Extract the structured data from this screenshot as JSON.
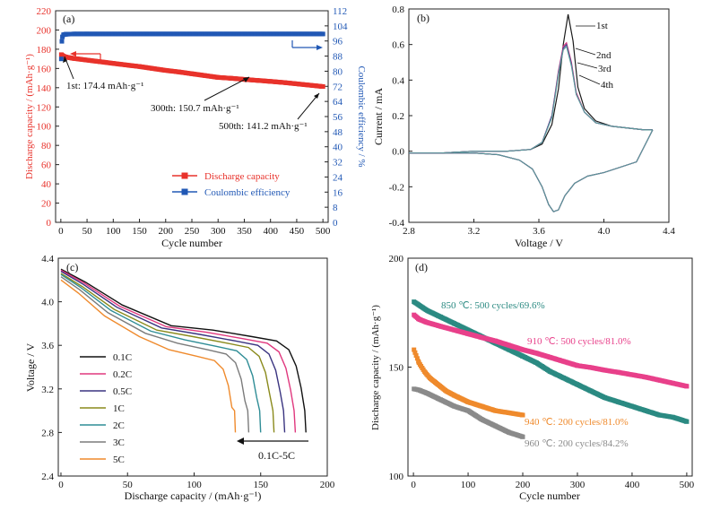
{
  "chart_data": [
    {
      "panel": "(a)",
      "type": "scatter",
      "xlabel": "Cycle number",
      "ylabel": "Discharge capacity / (mAh·g⁻¹)",
      "ylabel_right": "Coulombic efficiency / %",
      "xlim": [
        -10,
        510
      ],
      "ylim": [
        0,
        220
      ],
      "ylim_right": [
        0,
        112
      ],
      "xticks": [
        0,
        50,
        100,
        150,
        200,
        250,
        300,
        350,
        400,
        450,
        500
      ],
      "yticks": [
        0,
        20,
        40,
        60,
        80,
        100,
        120,
        140,
        160,
        180,
        200,
        220
      ],
      "yticks_right": [
        0,
        8,
        16,
        24,
        32,
        40,
        48,
        56,
        64,
        72,
        80,
        88,
        96,
        104,
        112
      ],
      "legend_position": "lower-center",
      "series": [
        {
          "name": "Discharge capacity",
          "axis": "left",
          "color": "#e8322b",
          "x": [
            1,
            5,
            10,
            25,
            50,
            75,
            100,
            125,
            150,
            175,
            200,
            225,
            250,
            275,
            300,
            325,
            350,
            375,
            400,
            425,
            450,
            475,
            500
          ],
          "y": [
            174.4,
            172.8,
            171.8,
            170.4,
            168.7,
            167.0,
            165.3,
            163.6,
            162.0,
            160.0,
            158.0,
            156.4,
            154.5,
            152.6,
            150.7,
            149.8,
            148.6,
            147.6,
            146.5,
            145.4,
            144.0,
            142.6,
            141.2
          ]
        },
        {
          "name": "Coulombic efficiency",
          "axis": "right",
          "color": "#2158b5",
          "x": [
            1,
            2,
            3,
            5,
            10,
            25,
            50,
            100,
            150,
            200,
            250,
            300,
            350,
            400,
            450,
            500
          ],
          "y": [
            86.5,
            95.8,
            98.2,
            99.3,
            99.6,
            99.7,
            99.7,
            99.7,
            99.7,
            99.7,
            99.7,
            99.7,
            99.7,
            99.7,
            99.7,
            99.7
          ]
        }
      ],
      "annotations": [
        "1st: 174.4 mAh·g⁻¹",
        "300th: 150.7 mAh·g⁻¹",
        "500th: 141.2 mAh·g⁻¹"
      ]
    },
    {
      "panel": "(b)",
      "type": "line",
      "xlabel": "Voltage / V",
      "ylabel": "Current / mA",
      "xlim": [
        2.8,
        4.4
      ],
      "ylim": [
        -0.4,
        0.8
      ],
      "xticks": [
        2.8,
        3.2,
        3.6,
        4.0,
        4.4
      ],
      "yticks": [
        -0.4,
        -0.2,
        0.0,
        0.2,
        0.4,
        0.6,
        0.8
      ],
      "series": [
        {
          "name": "1st",
          "color": "#1a1a1a",
          "x": [
            2.8,
            3.0,
            3.2,
            3.4,
            3.55,
            3.62,
            3.68,
            3.72,
            3.75,
            3.78,
            3.81,
            3.84,
            3.88,
            3.95,
            4.05,
            4.15,
            4.25,
            4.3
          ],
          "y": [
            -0.01,
            -0.01,
            0.0,
            0.0,
            0.01,
            0.04,
            0.15,
            0.35,
            0.6,
            0.77,
            0.62,
            0.36,
            0.24,
            0.17,
            0.14,
            0.13,
            0.12,
            0.12
          ]
        },
        {
          "name": "2nd",
          "color": "#d6357c",
          "x": [
            2.8,
            3.0,
            3.2,
            3.4,
            3.55,
            3.62,
            3.68,
            3.72,
            3.75,
            3.77,
            3.8,
            3.83,
            3.88,
            3.95,
            4.05,
            4.15,
            4.25,
            4.3
          ],
          "y": [
            -0.01,
            -0.01,
            0.0,
            0.0,
            0.01,
            0.05,
            0.2,
            0.45,
            0.59,
            0.61,
            0.5,
            0.33,
            0.22,
            0.16,
            0.14,
            0.13,
            0.12,
            0.12
          ]
        },
        {
          "name": "3rd",
          "color": "#4d3c92",
          "x": [
            2.8,
            3.0,
            3.2,
            3.4,
            3.55,
            3.62,
            3.68,
            3.72,
            3.75,
            3.77,
            3.8,
            3.83,
            3.88,
            3.95,
            4.05,
            4.15,
            4.25,
            4.3
          ],
          "y": [
            -0.01,
            -0.01,
            0.0,
            0.0,
            0.01,
            0.05,
            0.2,
            0.44,
            0.58,
            0.6,
            0.49,
            0.32,
            0.22,
            0.16,
            0.14,
            0.13,
            0.12,
            0.12
          ]
        },
        {
          "name": "4th",
          "color": "#5a9a9a",
          "x": [
            2.8,
            3.0,
            3.2,
            3.4,
            3.55,
            3.62,
            3.68,
            3.72,
            3.75,
            3.77,
            3.8,
            3.83,
            3.88,
            3.95,
            4.05,
            4.15,
            4.25,
            4.3
          ],
          "y": [
            -0.01,
            -0.01,
            0.0,
            0.0,
            0.01,
            0.05,
            0.19,
            0.43,
            0.57,
            0.59,
            0.48,
            0.32,
            0.22,
            0.16,
            0.14,
            0.13,
            0.12,
            0.12
          ]
        }
      ],
      "reduction_branch": {
        "x": [
          4.3,
          4.2,
          4.0,
          3.9,
          3.82,
          3.76,
          3.72,
          3.69,
          3.66,
          3.62,
          3.56,
          3.48,
          3.35,
          3.2,
          3.0,
          2.8
        ],
        "y": [
          0.12,
          -0.06,
          -0.12,
          -0.14,
          -0.18,
          -0.25,
          -0.33,
          -0.34,
          -0.3,
          -0.2,
          -0.1,
          -0.05,
          -0.02,
          -0.01,
          -0.01,
          -0.01
        ]
      },
      "annotations": [
        "1st",
        "2nd",
        "3rd",
        "4th"
      ]
    },
    {
      "panel": "(c)",
      "type": "line",
      "xlabel": "Discharge capacity / (mAh·g⁻¹)",
      "ylabel": "Voltage / V",
      "xlim": [
        -2,
        200
      ],
      "ylim": [
        2.4,
        4.4
      ],
      "xticks": [
        0,
        50,
        100,
        150,
        200
      ],
      "yticks": [
        2.4,
        2.8,
        3.2,
        3.6,
        4.0,
        4.4
      ],
      "legend_position": "left",
      "series": [
        {
          "name": "0.1C",
          "color": "#111111",
          "cap": 184,
          "v0": 4.3,
          "plateau": 3.66
        },
        {
          "name": "0.2C",
          "color": "#e0387e",
          "cap": 176,
          "v0": 4.29,
          "plateau": 3.64
        },
        {
          "name": "0.5C",
          "color": "#3a3480",
          "cap": 168,
          "v0": 4.28,
          "plateau": 3.62
        },
        {
          "name": "1C",
          "color": "#8a8a1c",
          "cap": 160,
          "v0": 4.26,
          "plateau": 3.6
        },
        {
          "name": "2C",
          "color": "#2f8d96",
          "cap": 150,
          "v0": 4.25,
          "plateau": 3.57
        },
        {
          "name": "3C",
          "color": "#7b7b7b",
          "cap": 141,
          "v0": 4.23,
          "plateau": 3.54
        },
        {
          "name": "5C",
          "color": "#ef8a2c",
          "cap": 131,
          "v0": 4.2,
          "plateau": 3.48
        }
      ],
      "annotations": [
        "0.1C-5C"
      ]
    },
    {
      "panel": "(d)",
      "type": "scatter",
      "xlabel": "Cycle number",
      "ylabel": "Discharge capacity / (mAh·g⁻¹)",
      "xlim": [
        -10,
        510
      ],
      "ylim": [
        100,
        200
      ],
      "xticks": [
        0,
        100,
        200,
        300,
        400,
        500
      ],
      "yticks": [
        100,
        150,
        200
      ],
      "series": [
        {
          "name": "850 ℃",
          "color": "#2b8a82",
          "x": [
            1,
            25,
            50,
            75,
            100,
            125,
            150,
            175,
            200,
            225,
            250,
            275,
            300,
            325,
            350,
            375,
            400,
            425,
            450,
            475,
            500
          ],
          "y": [
            180,
            176,
            173,
            170,
            167,
            164,
            161,
            158,
            155,
            152,
            148,
            145,
            142,
            139,
            136,
            134,
            132,
            130,
            128,
            127,
            125
          ]
        },
        {
          "name": "910 ℃",
          "color": "#e8408a",
          "x": [
            1,
            10,
            25,
            50,
            75,
            100,
            125,
            150,
            175,
            200,
            225,
            250,
            275,
            300,
            325,
            350,
            375,
            400,
            425,
            450,
            475,
            500
          ],
          "y": [
            174,
            172,
            170.5,
            168.7,
            167,
            165.3,
            163.6,
            162,
            160,
            158,
            156.4,
            154.5,
            152.6,
            150.7,
            149.8,
            148.6,
            147.6,
            146.5,
            145.4,
            144,
            142.6,
            141.2
          ]
        },
        {
          "name": "940 ℃",
          "color": "#ef8a2c",
          "x": [
            1,
            10,
            20,
            30,
            40,
            50,
            60,
            75,
            100,
            125,
            150,
            175,
            200
          ],
          "y": [
            158,
            152,
            148,
            145,
            143,
            141,
            139,
            137,
            134,
            132,
            130,
            129,
            128
          ]
        },
        {
          "name": "960 ℃",
          "color": "#8a8a8a",
          "x": [
            1,
            10,
            25,
            50,
            75,
            100,
            125,
            150,
            175,
            200
          ],
          "y": [
            140,
            139.5,
            138,
            135,
            132,
            130,
            126,
            123,
            120,
            118
          ]
        }
      ],
      "annotations": [
        "850 ℃: 500 cycles/69.6%",
        "910 ℃: 500 cycles/81.0%",
        "940 ℃: 200 cycles/81.0%",
        "960 ℃: 200 cycles/84.2%"
      ]
    }
  ]
}
